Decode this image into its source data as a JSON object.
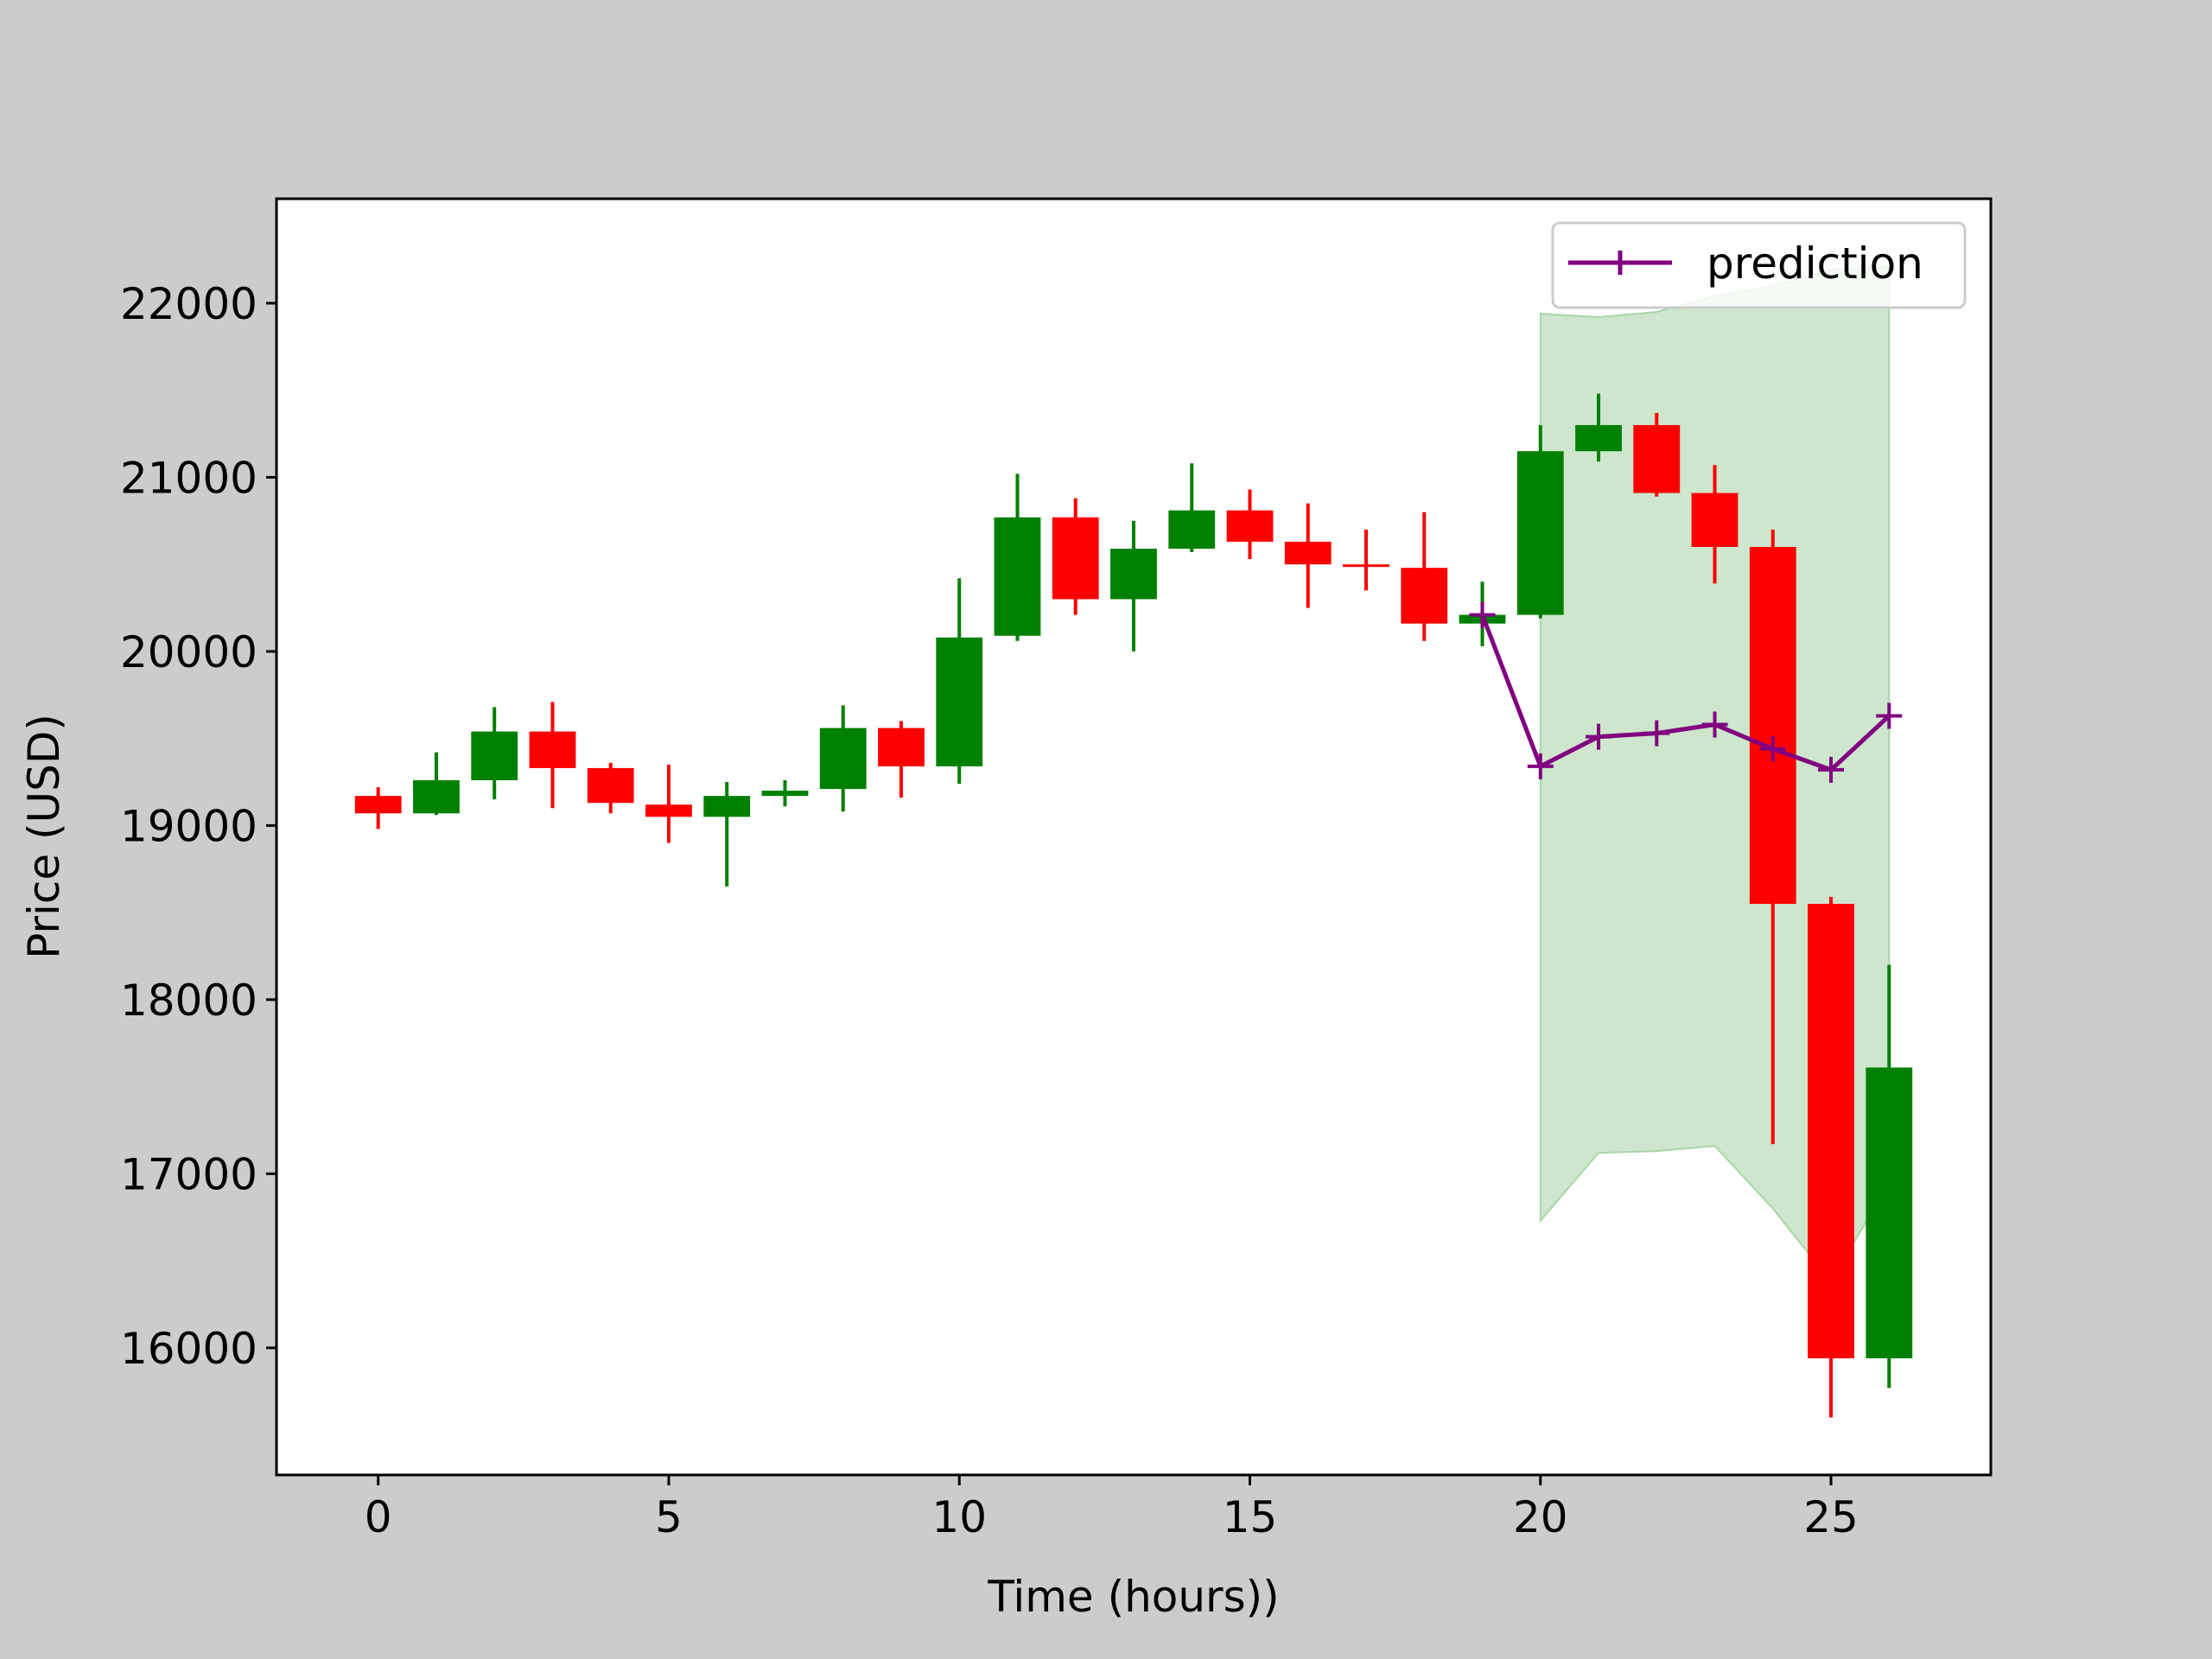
{
  "chart_data": {
    "type": "candlestick",
    "xlabel": "Time (hours))",
    "ylabel": "Price (USD)",
    "xlim": [
      -1.75,
      27.75
    ],
    "ylim": [
      15270,
      22600
    ],
    "xticks": [
      0,
      5,
      10,
      15,
      20,
      25
    ],
    "yticks": [
      16000,
      17000,
      18000,
      19000,
      20000,
      21000,
      22000
    ],
    "grid": false,
    "legend": {
      "position": "top-right",
      "entries": [
        "prediction"
      ]
    },
    "colors": {
      "up": "#008000",
      "down": "#ff0000",
      "prediction": "#800080",
      "band": "#cde6cd",
      "band_edge": "#a9d6a9"
    },
    "candles": [
      {
        "x": 0,
        "open": 19170,
        "close": 19070,
        "high": 19220,
        "low": 18980
      },
      {
        "x": 1,
        "open": 19070,
        "close": 19260,
        "high": 19420,
        "low": 19060
      },
      {
        "x": 2,
        "open": 19260,
        "close": 19540,
        "high": 19680,
        "low": 19150
      },
      {
        "x": 3,
        "open": 19540,
        "close": 19330,
        "high": 19710,
        "low": 19100
      },
      {
        "x": 4,
        "open": 19330,
        "close": 19130,
        "high": 19360,
        "low": 19070
      },
      {
        "x": 5,
        "open": 19120,
        "close": 19050,
        "high": 19350,
        "low": 18900
      },
      {
        "x": 6,
        "open": 19050,
        "close": 19170,
        "high": 19250,
        "low": 18650
      },
      {
        "x": 7,
        "open": 19170,
        "close": 19200,
        "high": 19260,
        "low": 19110
      },
      {
        "x": 8,
        "open": 19210,
        "close": 19560,
        "high": 19690,
        "low": 19080
      },
      {
        "x": 9,
        "open": 19560,
        "close": 19340,
        "high": 19600,
        "low": 19160
      },
      {
        "x": 10,
        "open": 19340,
        "close": 20080,
        "high": 20420,
        "low": 19240
      },
      {
        "x": 11,
        "open": 20090,
        "close": 20770,
        "high": 21020,
        "low": 20060
      },
      {
        "x": 12,
        "open": 20770,
        "close": 20300,
        "high": 20880,
        "low": 20210
      },
      {
        "x": 13,
        "open": 20300,
        "close": 20590,
        "high": 20750,
        "low": 20000
      },
      {
        "x": 14,
        "open": 20590,
        "close": 20810,
        "high": 21080,
        "low": 20570
      },
      {
        "x": 15,
        "open": 20810,
        "close": 20630,
        "high": 20930,
        "low": 20530
      },
      {
        "x": 16,
        "open": 20630,
        "close": 20500,
        "high": 20850,
        "low": 20250
      },
      {
        "x": 17,
        "open": 20500,
        "close": 20490,
        "high": 20700,
        "low": 20350
      },
      {
        "x": 18,
        "open": 20480,
        "close": 20160,
        "high": 20800,
        "low": 20060
      },
      {
        "x": 19,
        "open": 20160,
        "close": 20210,
        "high": 20400,
        "low": 20030
      },
      {
        "x": 20,
        "open": 20210,
        "close": 21150,
        "high": 21300,
        "low": 20190
      },
      {
        "x": 21,
        "open": 21150,
        "close": 21300,
        "high": 21480,
        "low": 21090
      },
      {
        "x": 22,
        "open": 21300,
        "close": 20910,
        "high": 21370,
        "low": 20890
      },
      {
        "x": 23,
        "open": 20910,
        "close": 20600,
        "high": 21070,
        "low": 20390
      },
      {
        "x": 24,
        "open": 20600,
        "close": 18550,
        "high": 20700,
        "low": 17170
      },
      {
        "x": 25,
        "open": 18550,
        "close": 15940,
        "high": 18590,
        "low": 15600
      },
      {
        "x": 26,
        "open": 15940,
        "close": 17610,
        "high": 18200,
        "low": 15770
      }
    ],
    "series": [
      {
        "name": "prediction",
        "type": "line",
        "marker": "+",
        "x": [
          19,
          20,
          21,
          22,
          23,
          24,
          25,
          26
        ],
        "y": [
          20210,
          19340,
          19510,
          19530,
          19580,
          19440,
          19320,
          19630
        ]
      }
    ],
    "band": {
      "x": [
        20,
        21,
        22,
        23,
        24,
        25,
        26
      ],
      "upper": [
        21940,
        21920,
        21950,
        22040,
        22100,
        22190,
        22210
      ],
      "lower": [
        16730,
        17120,
        17130,
        17160,
        16800,
        16380,
        16950
      ]
    }
  }
}
